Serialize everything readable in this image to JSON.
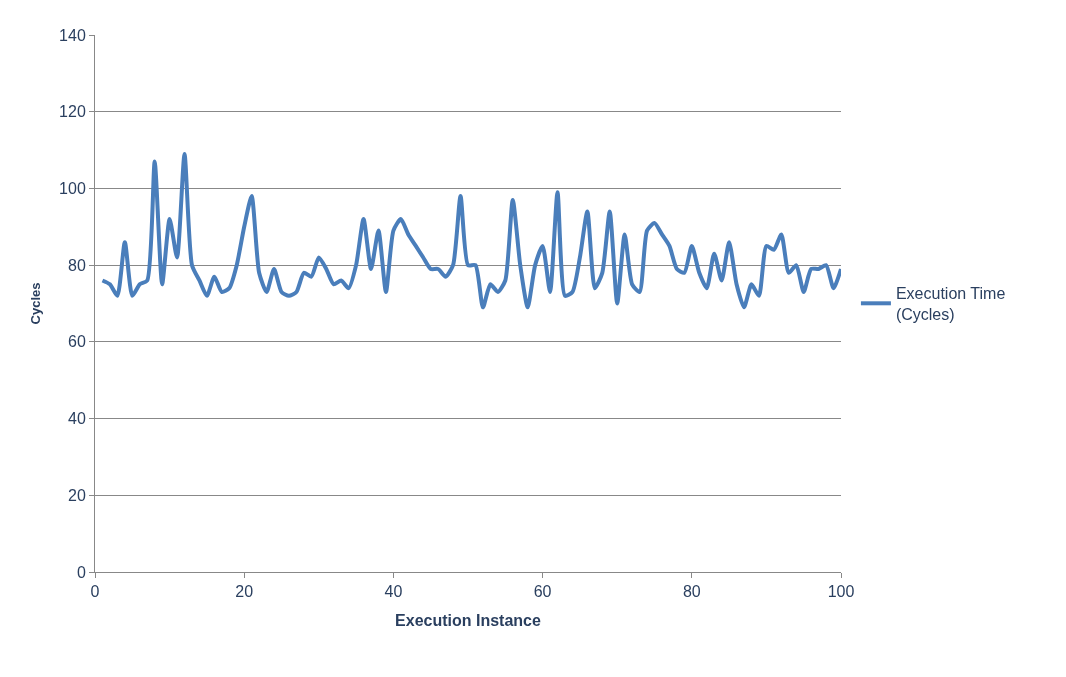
{
  "chart_data": {
    "type": "line",
    "xlabel": "Execution Instance",
    "ylabel": "Cycles",
    "x": [
      1,
      2,
      3,
      4,
      5,
      6,
      7,
      8,
      9,
      10,
      11,
      12,
      13,
      14,
      15,
      16,
      17,
      18,
      19,
      20,
      21,
      22,
      23,
      24,
      25,
      26,
      27,
      28,
      29,
      30,
      31,
      32,
      33,
      34,
      35,
      36,
      37,
      38,
      39,
      40,
      41,
      42,
      43,
      44,
      45,
      46,
      47,
      48,
      49,
      50,
      51,
      52,
      53,
      54,
      55,
      56,
      57,
      58,
      59,
      60,
      61,
      62,
      63,
      64,
      65,
      66,
      67,
      68,
      69,
      70,
      71,
      72,
      73,
      74,
      75,
      76,
      77,
      78,
      79,
      80,
      81,
      82,
      83,
      84,
      85,
      86,
      87,
      88,
      89,
      90,
      91,
      92,
      93,
      94,
      95,
      96,
      97,
      98,
      99,
      100
    ],
    "series": [
      {
        "name": "Execution Time (Cycles)",
        "color": "#4a7ebb",
        "values": [
          76,
          75,
          72,
          86,
          72,
          75,
          76,
          107,
          75,
          92,
          82,
          109,
          80,
          76,
          72,
          77,
          73,
          74,
          80,
          90,
          98,
          78,
          73,
          79,
          73,
          72,
          73,
          78,
          77,
          82,
          79,
          75,
          76,
          74,
          80,
          92,
          79,
          89,
          73,
          89,
          92,
          88,
          85,
          82,
          79,
          79,
          77,
          80,
          98,
          80,
          80,
          69,
          75,
          73,
          76,
          97,
          80,
          69,
          80,
          85,
          73,
          99,
          72,
          73,
          82,
          94,
          74,
          78,
          94,
          70,
          88,
          75,
          73,
          89,
          91,
          88,
          85,
          79,
          78,
          85,
          78,
          74,
          83,
          76,
          86,
          75,
          69,
          75,
          72,
          85,
          84,
          88,
          78,
          80,
          73,
          79,
          79,
          80,
          74,
          79
        ]
      }
    ],
    "xlim": [
      0,
      100
    ],
    "xticks": [
      0,
      20,
      40,
      60,
      80,
      100
    ],
    "ylim": [
      0,
      140
    ],
    "yticks": [
      0,
      20,
      40,
      60,
      80,
      100,
      120,
      140
    ],
    "grid": "y",
    "legend": "right",
    "marker": "none",
    "line_style": "solid"
  }
}
